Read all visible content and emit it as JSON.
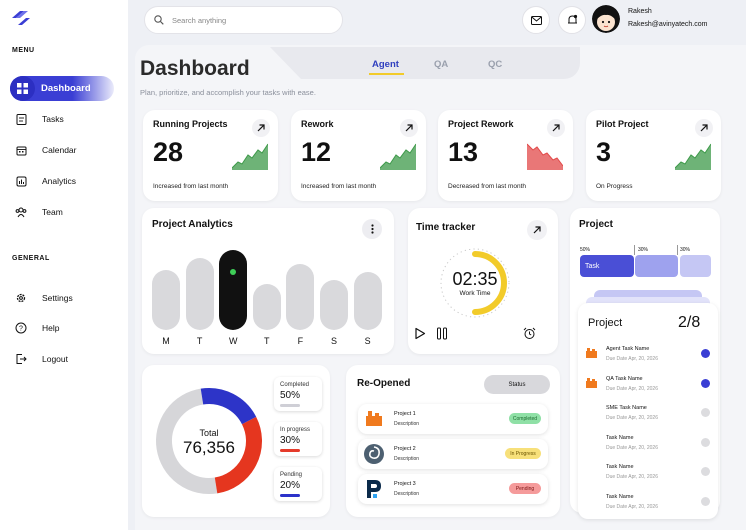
{
  "search": {
    "placeholder": "Search anything"
  },
  "user": {
    "name": "Rakesh",
    "email": "Rakesh@avinyatech.com"
  },
  "sidebar": {
    "menu_heading": "MENU",
    "general_heading": "GENERAL",
    "items": [
      {
        "label": "Dashboard",
        "icon": "grid-icon"
      },
      {
        "label": "Tasks",
        "icon": "clipboard-icon"
      },
      {
        "label": "Calendar",
        "icon": "calendar-icon"
      },
      {
        "label": "Analytics",
        "icon": "chart-icon"
      },
      {
        "label": "Team",
        "icon": "team-icon"
      }
    ],
    "general_items": [
      {
        "label": "Settings",
        "icon": "gear-icon"
      },
      {
        "label": "Help",
        "icon": "help-icon"
      },
      {
        "label": "Logout",
        "icon": "logout-icon"
      }
    ]
  },
  "header": {
    "title": "Dashboard",
    "subtitle": "Plan, prioritize, and accomplish your tasks with ease.",
    "tabs": [
      "Agent",
      "QA",
      "QC"
    ],
    "active_tab": "Agent"
  },
  "stats": [
    {
      "title": "Running Projects",
      "value": "28",
      "sub": "Increased from last month",
      "trend": "up",
      "color": "#3e9a4a"
    },
    {
      "title": "Rework",
      "value": "12",
      "sub": "Increased from last month",
      "trend": "up",
      "color": "#3e9a4a"
    },
    {
      "title": "Project Rework",
      "value": "13",
      "sub": "Decreased from last month",
      "trend": "down",
      "color": "#e24a4a"
    },
    {
      "title": "Pilot Project",
      "value": "3",
      "sub": "On Progress",
      "trend": "up",
      "color": "#3e9a4a"
    }
  ],
  "analytics": {
    "title": "Project Analytics",
    "days": [
      "M",
      "T",
      "W",
      "T",
      "F",
      "S",
      "S"
    ],
    "active_index": 2
  },
  "timer": {
    "title": "Time tracker",
    "time": "02:35",
    "label": "Work Time",
    "progress": 0.5
  },
  "project_panel": {
    "title": "Project",
    "segments": [
      {
        "pct": "50%",
        "label": "Task"
      },
      {
        "pct": "30%"
      },
      {
        "pct": "30%"
      }
    ],
    "list_title": "Project",
    "count": "2/8",
    "tasks": [
      {
        "name": "Agent Task Name",
        "due": "Due Date Apr, 20, 2026",
        "done": true
      },
      {
        "name": "QA Task Name",
        "due": "Due Date Apr, 20, 2026",
        "done": true
      },
      {
        "name": "SME Task Name",
        "due": "Due Date Apr, 20, 2026",
        "done": false
      },
      {
        "name": "Task Name",
        "due": "Due Date Apr, 20, 2026",
        "done": false
      },
      {
        "name": "Task Name",
        "due": "Due Date Apr, 20, 2026",
        "done": false
      },
      {
        "name": "Task Name",
        "due": "Due Date Apr, 20, 2026",
        "done": false
      }
    ]
  },
  "donut": {
    "label": "Total",
    "value": "76,356",
    "legend": [
      {
        "title": "Completed",
        "value": "50%",
        "color": "#cfcfd6"
      },
      {
        "title": "In progress",
        "value": "30%",
        "color": "#e53b2b"
      },
      {
        "title": "Pending",
        "value": "20%",
        "color": "#2b32c9"
      }
    ]
  },
  "reopened": {
    "title": "Re-Opened",
    "status_label": "Status",
    "rows": [
      {
        "name": "Project 1",
        "desc": "Description",
        "status": "Completed",
        "bg": "#8fe0a6",
        "fg": "#1c6b2f"
      },
      {
        "name": "Project 2",
        "desc": "Description",
        "status": "In Progress",
        "bg": "#f7e07a",
        "fg": "#6b5400"
      },
      {
        "name": "Project 3",
        "desc": "Description",
        "status": "Pending",
        "bg": "#f59b9b",
        "fg": "#7a1111"
      }
    ]
  }
}
